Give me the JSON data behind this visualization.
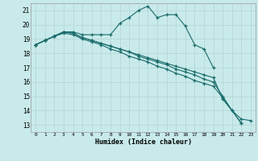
{
  "xlabel": "Humidex (Indice chaleur)",
  "bg_color": "#c8eaea",
  "grid_color": "#b8d8d8",
  "line_color": "#1a6b6b",
  "xlim": [
    -0.5,
    23.5
  ],
  "ylim": [
    12.5,
    21.5
  ],
  "xticks": [
    0,
    1,
    2,
    3,
    4,
    5,
    6,
    7,
    8,
    9,
    10,
    11,
    12,
    13,
    14,
    15,
    16,
    17,
    18,
    19,
    20,
    21,
    22,
    23
  ],
  "yticks": [
    13,
    14,
    15,
    16,
    17,
    18,
    19,
    20,
    21
  ],
  "line1_x": [
    0,
    1,
    2,
    3,
    4,
    5,
    6,
    7,
    8,
    9,
    10,
    11,
    12,
    13,
    14,
    15,
    16,
    17,
    18,
    19
  ],
  "line1_y": [
    18.6,
    18.9,
    19.2,
    19.5,
    19.5,
    19.3,
    19.3,
    19.3,
    19.3,
    20.1,
    20.5,
    21.0,
    21.3,
    20.5,
    20.7,
    20.7,
    19.9,
    18.6,
    18.3,
    17.0
  ],
  "line2_x": [
    0,
    1,
    2,
    3,
    4,
    5,
    6,
    7,
    8,
    9,
    10,
    11,
    12,
    13,
    14,
    15,
    16,
    17,
    18,
    19,
    20,
    21,
    22
  ],
  "line2_y": [
    18.6,
    18.9,
    19.2,
    19.5,
    19.4,
    19.1,
    18.9,
    18.7,
    18.5,
    18.3,
    18.1,
    17.9,
    17.7,
    17.5,
    17.3,
    17.1,
    16.9,
    16.7,
    16.5,
    16.3,
    14.8,
    14.0,
    13.1
  ],
  "line3_x": [
    0,
    1,
    2,
    3,
    4,
    5,
    6,
    7,
    8,
    9,
    10,
    11,
    12,
    13,
    14,
    15,
    16,
    17,
    18,
    19,
    20,
    21,
    22,
    23
  ],
  "line3_y": [
    18.6,
    18.9,
    19.2,
    19.5,
    19.4,
    19.1,
    18.9,
    18.7,
    18.5,
    18.3,
    18.1,
    17.8,
    17.6,
    17.4,
    17.2,
    16.9,
    16.7,
    16.5,
    16.2,
    16.0,
    15.0,
    14.0,
    13.4,
    13.3
  ],
  "line4_x": [
    0,
    1,
    2,
    3,
    4,
    5,
    6,
    7,
    8,
    9,
    10,
    11,
    12,
    13,
    14,
    15,
    16,
    17,
    18,
    19,
    20,
    22
  ],
  "line4_y": [
    18.6,
    18.9,
    19.2,
    19.4,
    19.3,
    19.0,
    18.8,
    18.6,
    18.3,
    18.1,
    17.8,
    17.6,
    17.4,
    17.1,
    16.9,
    16.6,
    16.4,
    16.1,
    15.9,
    15.7,
    14.9,
    13.1
  ]
}
